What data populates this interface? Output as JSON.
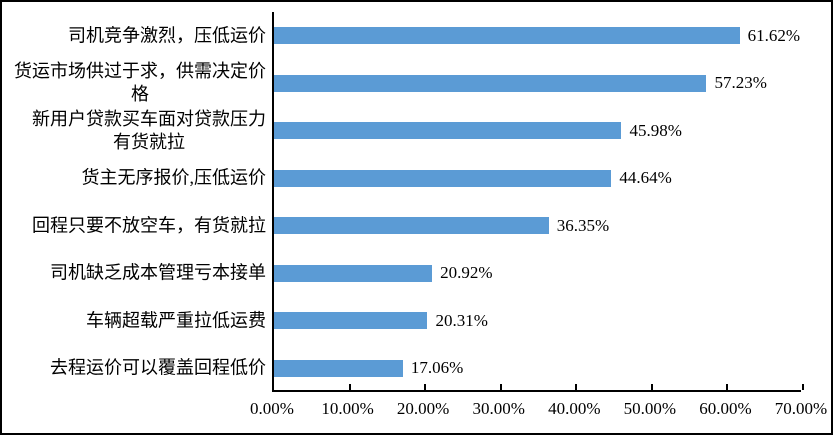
{
  "chart_data": {
    "type": "bar",
    "orientation": "horizontal",
    "title": "",
    "xlabel": "",
    "ylabel": "",
    "categories": [
      "司机竞争激烈，压低运价",
      "货运市场供过于求，供需决定价格",
      "新用户贷款买车面对贷款压力有货就拉",
      "货主无序报价,压低运价",
      "回程只要不放空车，有货就拉",
      "司机缺乏成本管理亏本接单",
      "车辆超载严重拉低运费",
      "去程运价可以覆盖回程低价"
    ],
    "category_display": [
      "司机竞争激烈，压低运价",
      "货运市场供过于求，供需决定价\n格",
      "新用户贷款买车面对贷款压力\n有货就拉",
      "货主无序报价,压低运价",
      "回程只要不放空车，有货就拉",
      "司机缺乏成本管理亏本接单",
      "车辆超载严重拉低运费",
      "去程运价可以覆盖回程低价"
    ],
    "values": [
      61.62,
      57.23,
      45.98,
      44.64,
      36.35,
      20.92,
      20.31,
      17.06
    ],
    "data_labels": [
      "61.62%",
      "57.23%",
      "45.98%",
      "44.64%",
      "36.35%",
      "20.92%",
      "20.31%",
      "17.06%"
    ],
    "x_tick_labels": [
      "0.00%",
      "10.00%",
      "20.00%",
      "30.00%",
      "40.00%",
      "50.00%",
      "60.00%",
      "70.00%"
    ],
    "xlim": [
      0,
      70
    ],
    "grid": "off",
    "legend": "none",
    "bar_color": "#5B9BD5",
    "axis_color": "#000000",
    "text_color": "#000000"
  }
}
